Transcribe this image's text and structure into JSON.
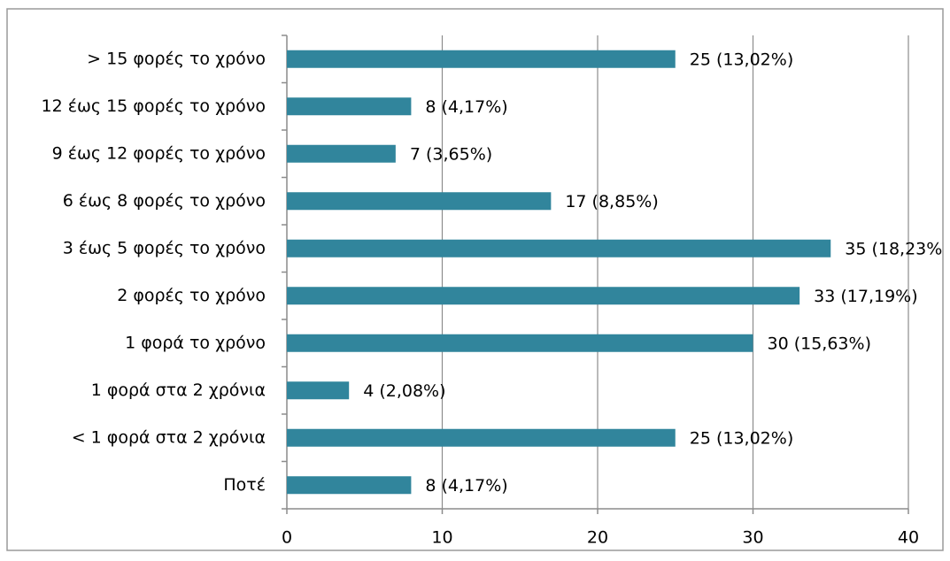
{
  "chart_data": {
    "type": "bar",
    "orientation": "horizontal",
    "categories": [
      "> 15 φορές το χρόνο",
      "12 έως 15 φορές το χρόνο",
      "9 έως 12 φορές το χρόνο",
      "6 έως 8 φορές το χρόνο",
      "3 έως 5 φορές το χρόνο",
      "2 φορές το χρόνο",
      "1 φορά το χρόνο",
      "1 φορά στα 2 χρόνια",
      "< 1 φορά στα 2 χρόνια",
      "Ποτέ"
    ],
    "values": [
      25,
      8,
      7,
      17,
      35,
      33,
      30,
      4,
      25,
      8
    ],
    "value_labels": [
      "25 (13,02%)",
      "8 (4,17%)",
      "7 (3,65%)",
      "17 (8,85%)",
      "35 (18,23%",
      "33 (17,19%)",
      "30 (15,63%)",
      "4 (2,08%)",
      "25 (13,02%)",
      "8 (4,17%)"
    ],
    "color": "#31859c",
    "xlim": [
      0,
      40
    ],
    "xticks": [
      0,
      10,
      20,
      30,
      40
    ],
    "grid": true
  }
}
